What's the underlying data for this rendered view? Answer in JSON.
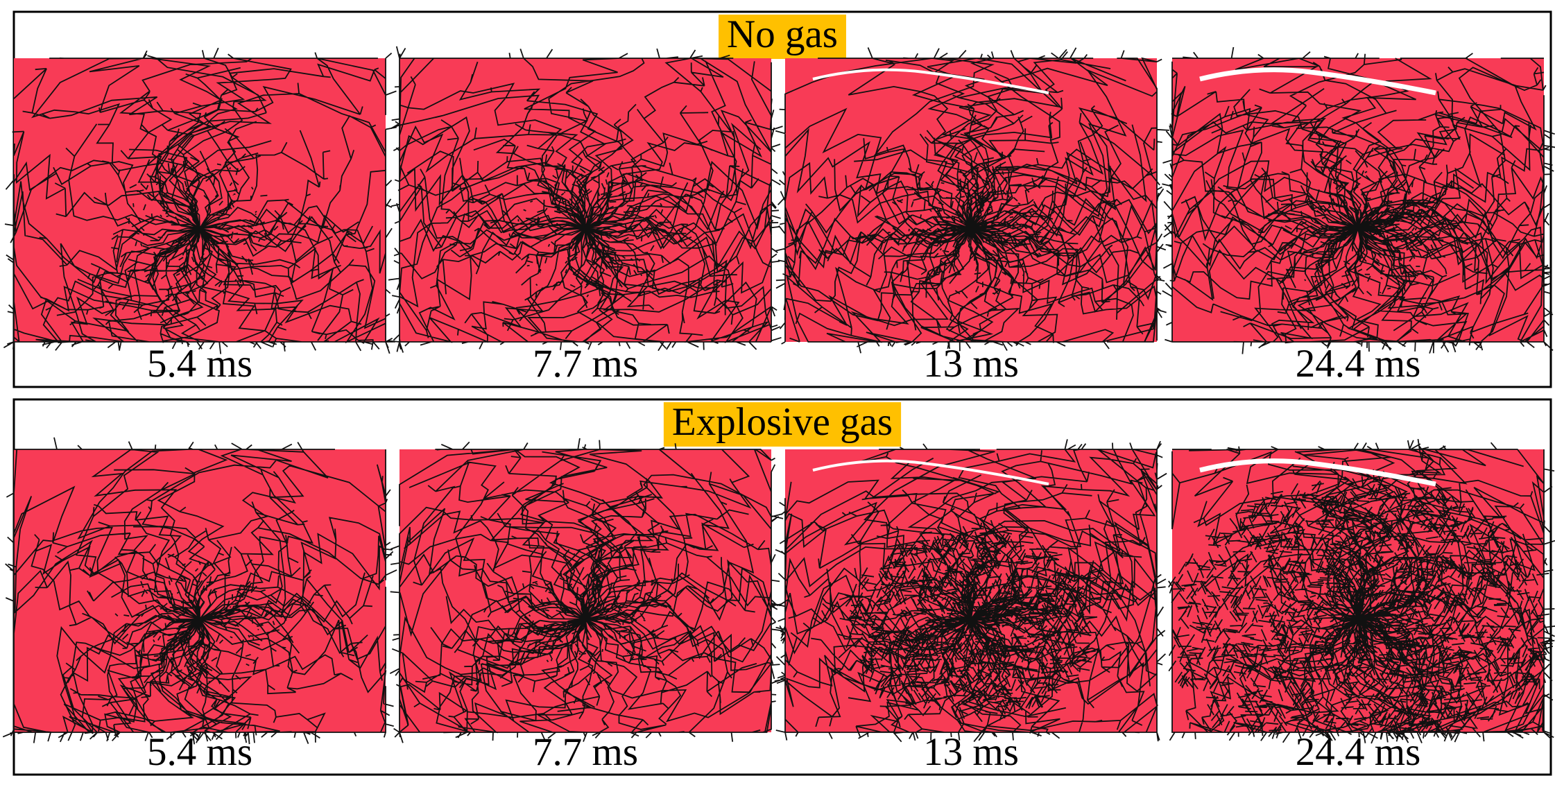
{
  "panels": [
    {
      "title": "No gas",
      "frames": [
        {
          "label": "5.4 ms"
        },
        {
          "label": "7.7 ms"
        },
        {
          "label": "13 ms"
        },
        {
          "label": "24.4 ms"
        }
      ]
    },
    {
      "title": "Explosive gas",
      "frames": [
        {
          "label": "5.4 ms"
        },
        {
          "label": "7.7 ms"
        },
        {
          "label": "13 ms"
        },
        {
          "label": "24.4 ms"
        }
      ]
    }
  ]
}
